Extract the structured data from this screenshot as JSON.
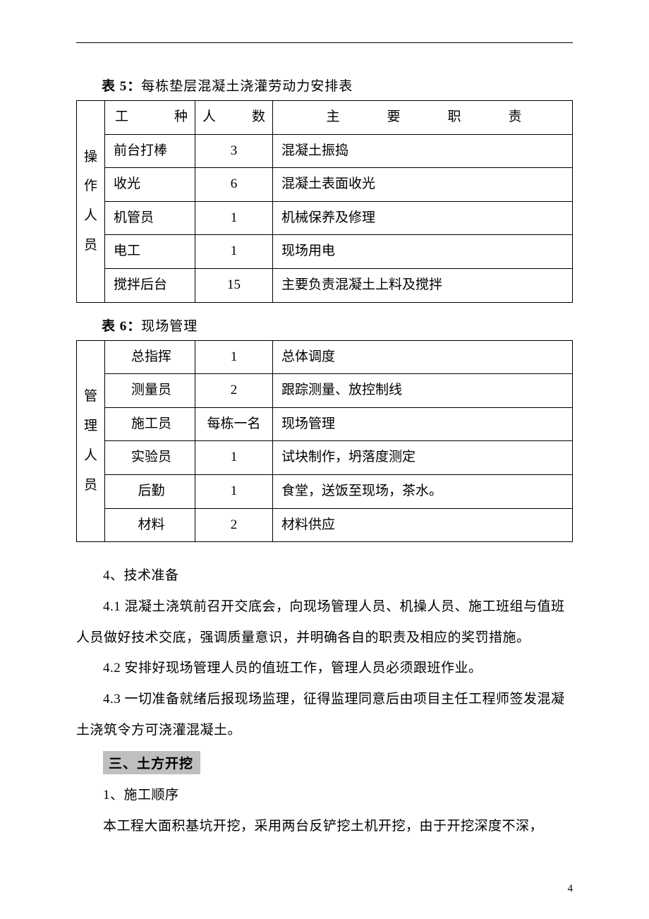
{
  "table5": {
    "caption_bold": "表 5：",
    "caption_rest": "每栋垫层混凝土浇灌劳动力安排表",
    "header": {
      "role": "工种",
      "count": "人数",
      "duty": "主要职责"
    },
    "rowhead": "操作人员",
    "rows": [
      {
        "role": "前台打棒",
        "count": "3",
        "duty": "混凝土振捣"
      },
      {
        "role": "收光",
        "count": "6",
        "duty": "混凝土表面收光"
      },
      {
        "role": "机管员",
        "count": "1",
        "duty": "机械保养及修理"
      },
      {
        "role": "电工",
        "count": "1",
        "duty": "现场用电"
      },
      {
        "role": "搅拌后台",
        "count": "15",
        "duty": "主要负责混凝土上料及搅拌"
      }
    ]
  },
  "table6": {
    "caption_bold": "表 6：",
    "caption_rest": "现场管理",
    "rowhead": "管理人员",
    "rows": [
      {
        "role": "总指挥",
        "count": "1",
        "duty": "总体调度"
      },
      {
        "role": "测量员",
        "count": "2",
        "duty": "跟踪测量、放控制线"
      },
      {
        "role": "施工员",
        "count": "每栋一名",
        "duty": "现场管理"
      },
      {
        "role": "实验员",
        "count": "1",
        "duty": "试块制作，坍落度测定"
      },
      {
        "role": "后勤",
        "count": "1",
        "duty": "食堂，送饭至现场，茶水。"
      },
      {
        "role": "材料",
        "count": "2",
        "duty": "材料供应"
      }
    ]
  },
  "paragraphs": {
    "p1": "4、技术准备",
    "p2": "4.1 混凝土浇筑前召开交底会，向现场管理人员、机操人员、施工班组与值班人员做好技术交底，强调质量意识，并明确各自的职责及相应的奖罚措施。",
    "p3": "4.2 安排好现场管理人员的值班工作，管理人员必须跟班作业。",
    "p4": "4.3 一切准备就绪后报现场监理，征得监理同意后由项目主任工程师签发混凝土浇筑令方可浇灌混凝土。",
    "section": "三、土方开挖",
    "p5": "1、施工顺序",
    "p6": "本工程大面积基坑开挖，采用两台反铲挖土机开挖，由于开挖深度不深，"
  },
  "page_number": "4",
  "hdr_spread": {
    "role_a": "工",
    "role_b": "种",
    "count_a": "人",
    "count_b": "数",
    "duty_a": "主",
    "duty_b": "要",
    "duty_c": "职",
    "duty_d": "责"
  }
}
